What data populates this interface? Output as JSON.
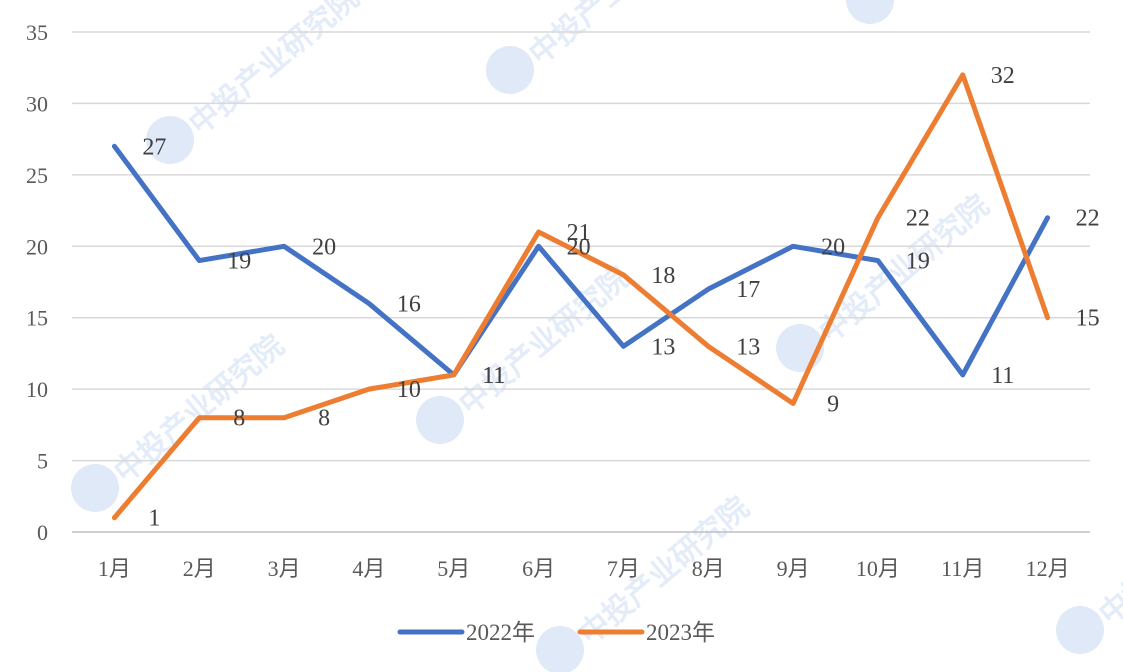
{
  "chart_data": {
    "type": "line",
    "categories": [
      "1月",
      "2月",
      "3月",
      "4月",
      "5月",
      "6月",
      "7月",
      "8月",
      "9月",
      "10月",
      "11月",
      "12月"
    ],
    "series": [
      {
        "name": "2022年",
        "color": "#4472c4",
        "values": [
          27,
          19,
          20,
          16,
          11,
          20,
          13,
          17,
          20,
          19,
          11,
          22
        ]
      },
      {
        "name": "2023年",
        "color": "#ed7d31",
        "values": [
          1,
          8,
          8,
          10,
          11,
          21,
          18,
          13,
          9,
          22,
          32,
          15
        ]
      }
    ],
    "ylim": [
      0,
      35
    ],
    "yticks": [
      0,
      5,
      10,
      15,
      20,
      25,
      30,
      35
    ],
    "grid": true,
    "legend_position": "bottom",
    "data_labels": true
  },
  "watermark": {
    "text": "中投产业研究院"
  }
}
